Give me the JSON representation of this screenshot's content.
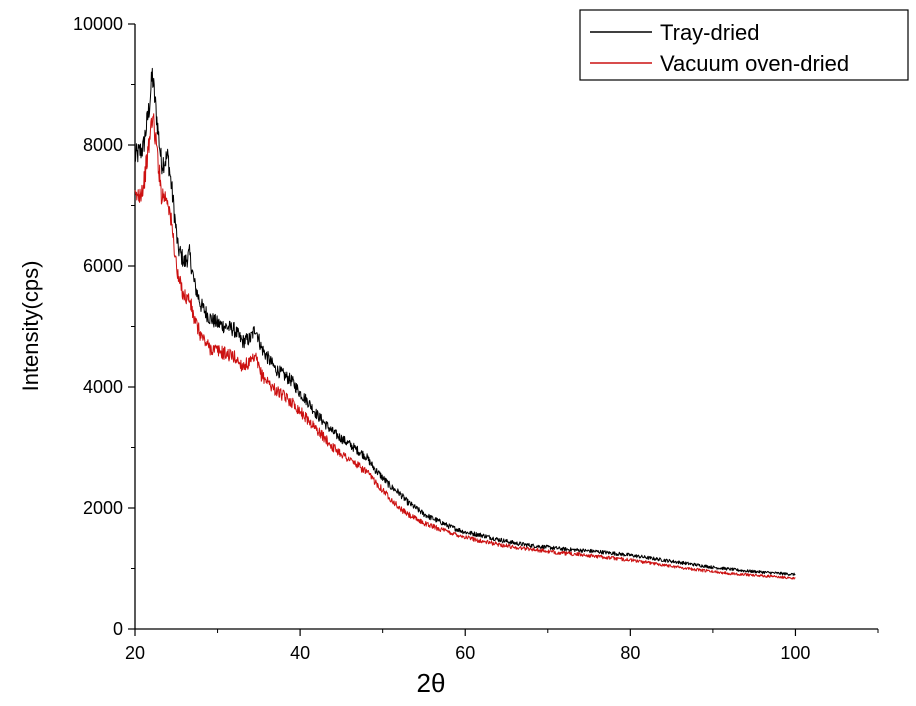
{
  "chart_data": {
    "type": "line",
    "title": "",
    "xlabel": "2θ",
    "ylabel": "Intensity(cps)",
    "xlim": [
      20,
      110
    ],
    "ylim": [
      0,
      10000
    ],
    "x_ticks": [
      20,
      40,
      60,
      80,
      100
    ],
    "x_tick_labels": [
      "20",
      "40",
      "60",
      "80",
      "100"
    ],
    "y_ticks": [
      0,
      2000,
      4000,
      6000,
      8000,
      10000
    ],
    "y_tick_labels": [
      "0",
      "2000",
      "4000",
      "6000",
      "8000",
      "10000"
    ],
    "grid": false,
    "legend_position": "top-right",
    "series": [
      {
        "name": "Tray-dried",
        "color": "#000000",
        "points": [
          [
            20,
            7800
          ],
          [
            21,
            7950
          ],
          [
            21.7,
            8600
          ],
          [
            22.1,
            9150
          ],
          [
            22.6,
            8500
          ],
          [
            23.2,
            7700
          ],
          [
            24,
            7800
          ],
          [
            24.6,
            7100
          ],
          [
            25.2,
            6300
          ],
          [
            26,
            6050
          ],
          [
            26.6,
            6200
          ],
          [
            27.2,
            5700
          ],
          [
            28,
            5350
          ],
          [
            29,
            5150
          ],
          [
            30,
            5050
          ],
          [
            31,
            5000
          ],
          [
            32,
            4950
          ],
          [
            33,
            4750
          ],
          [
            34,
            4800
          ],
          [
            34.6,
            4980
          ],
          [
            35.3,
            4650
          ],
          [
            36,
            4500
          ],
          [
            37,
            4300
          ],
          [
            38,
            4200
          ],
          [
            39,
            4100
          ],
          [
            40,
            3900
          ],
          [
            41,
            3750
          ],
          [
            42,
            3550
          ],
          [
            43,
            3400
          ],
          [
            44,
            3250
          ],
          [
            45,
            3150
          ],
          [
            46,
            3050
          ],
          [
            47,
            2950
          ],
          [
            48,
            2850
          ],
          [
            49,
            2650
          ],
          [
            50,
            2500
          ],
          [
            51,
            2350
          ],
          [
            52,
            2250
          ],
          [
            53,
            2100
          ],
          [
            54,
            2000
          ],
          [
            55,
            1900
          ],
          [
            56,
            1830
          ],
          [
            57,
            1770
          ],
          [
            58,
            1700
          ],
          [
            59,
            1650
          ],
          [
            60,
            1600
          ],
          [
            62,
            1550
          ],
          [
            64,
            1480
          ],
          [
            66,
            1420
          ],
          [
            68,
            1380
          ],
          [
            70,
            1350
          ],
          [
            72,
            1320
          ],
          [
            74,
            1300
          ],
          [
            76,
            1280
          ],
          [
            78,
            1250
          ],
          [
            80,
            1220
          ],
          [
            82,
            1180
          ],
          [
            84,
            1140
          ],
          [
            86,
            1100
          ],
          [
            88,
            1060
          ],
          [
            90,
            1020
          ],
          [
            92,
            990
          ],
          [
            94,
            960
          ],
          [
            96,
            940
          ],
          [
            98,
            920
          ],
          [
            100,
            900
          ]
        ]
      },
      {
        "name": "Vacuum oven-dried",
        "color": "#cc1010",
        "points": [
          [
            20,
            7100
          ],
          [
            21,
            7300
          ],
          [
            21.7,
            8000
          ],
          [
            22.1,
            8500
          ],
          [
            22.6,
            8000
          ],
          [
            23.2,
            7200
          ],
          [
            24,
            7100
          ],
          [
            24.6,
            6500
          ],
          [
            25.2,
            5800
          ],
          [
            26,
            5500
          ],
          [
            26.6,
            5450
          ],
          [
            27.2,
            5100
          ],
          [
            28,
            4850
          ],
          [
            29,
            4650
          ],
          [
            30,
            4600
          ],
          [
            31,
            4550
          ],
          [
            32,
            4500
          ],
          [
            33,
            4350
          ],
          [
            34,
            4400
          ],
          [
            34.6,
            4480
          ],
          [
            35.3,
            4200
          ],
          [
            36,
            4100
          ],
          [
            37,
            3950
          ],
          [
            38,
            3850
          ],
          [
            39,
            3750
          ],
          [
            40,
            3600
          ],
          [
            41,
            3450
          ],
          [
            42,
            3300
          ],
          [
            43,
            3150
          ],
          [
            44,
            3000
          ],
          [
            45,
            2900
          ],
          [
            46,
            2800
          ],
          [
            47,
            2700
          ],
          [
            48,
            2600
          ],
          [
            49,
            2450
          ],
          [
            50,
            2300
          ],
          [
            51,
            2150
          ],
          [
            52,
            2000
          ],
          [
            53,
            1900
          ],
          [
            54,
            1820
          ],
          [
            55,
            1750
          ],
          [
            56,
            1700
          ],
          [
            57,
            1650
          ],
          [
            58,
            1600
          ],
          [
            59,
            1560
          ],
          [
            60,
            1520
          ],
          [
            62,
            1450
          ],
          [
            64,
            1400
          ],
          [
            66,
            1350
          ],
          [
            68,
            1320
          ],
          [
            70,
            1280
          ],
          [
            72,
            1250
          ],
          [
            74,
            1230
          ],
          [
            76,
            1200
          ],
          [
            78,
            1170
          ],
          [
            80,
            1140
          ],
          [
            82,
            1100
          ],
          [
            84,
            1060
          ],
          [
            86,
            1020
          ],
          [
            88,
            980
          ],
          [
            90,
            950
          ],
          [
            92,
            920
          ],
          [
            94,
            900
          ],
          [
            96,
            880
          ],
          [
            98,
            860
          ],
          [
            100,
            840
          ]
        ]
      }
    ]
  }
}
